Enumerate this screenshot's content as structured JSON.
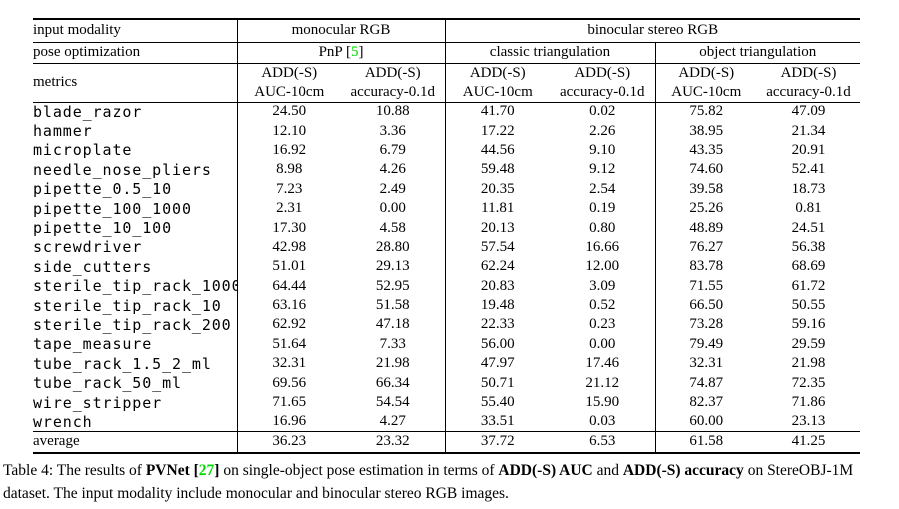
{
  "accent_colors": {
    "citation_green": "#00DD00"
  },
  "table": {
    "header_row1": {
      "label": "input modality",
      "monocular": "monocular RGB",
      "binocular": "binocular stereo RGB"
    },
    "header_row2": {
      "label": "pose optimization",
      "pnp_prefix": "PnP [",
      "pnp_cite": "5",
      "pnp_suffix": "]",
      "classic": "classic triangulation",
      "object": "object triangulation"
    },
    "header_row3": {
      "label": "metrics",
      "metric_top": "ADD(-S)",
      "auc_bottom": "AUC-10cm",
      "acc_bottom": "accuracy-0.1d"
    },
    "rows": [
      {
        "name": "blade_razor",
        "font": "mono",
        "values": [
          "24.50",
          "10.88",
          "41.70",
          "0.02",
          "75.82",
          "47.09"
        ],
        "bold": [
          false,
          false,
          false,
          false,
          true,
          true
        ]
      },
      {
        "name": "hammer",
        "font": "mono",
        "values": [
          "12.10",
          "3.36",
          "17.22",
          "2.26",
          "38.95",
          "21.34"
        ],
        "bold": [
          false,
          false,
          false,
          false,
          true,
          true
        ]
      },
      {
        "name": "microplate",
        "font": "mono",
        "values": [
          "16.92",
          "6.79",
          "44.56",
          "9.10",
          "43.35",
          "20.91"
        ],
        "bold": [
          false,
          false,
          true,
          false,
          false,
          true
        ]
      },
      {
        "name": "needle_nose_pliers",
        "font": "mono",
        "values": [
          "8.98",
          "4.26",
          "59.48",
          "9.12",
          "74.60",
          "52.41"
        ],
        "bold": [
          false,
          false,
          false,
          false,
          true,
          true
        ]
      },
      {
        "name": "pipette_0.5_10",
        "font": "mono",
        "values": [
          "7.23",
          "2.49",
          "20.35",
          "2.54",
          "39.58",
          "18.73"
        ],
        "bold": [
          false,
          false,
          false,
          false,
          true,
          true
        ]
      },
      {
        "name": "pipette_100_1000",
        "font": "mono",
        "values": [
          "2.31",
          "0.00",
          "11.81",
          "0.19",
          "25.26",
          "0.81"
        ],
        "bold": [
          false,
          false,
          false,
          false,
          true,
          true
        ]
      },
      {
        "name": "pipette_10_100",
        "font": "mono",
        "values": [
          "17.30",
          "4.58",
          "20.13",
          "0.80",
          "48.89",
          "24.51"
        ],
        "bold": [
          false,
          false,
          false,
          false,
          true,
          true
        ]
      },
      {
        "name": "screwdriver",
        "font": "mono",
        "values": [
          "42.98",
          "28.80",
          "57.54",
          "16.66",
          "76.27",
          "56.38"
        ],
        "bold": [
          false,
          false,
          false,
          false,
          true,
          true
        ]
      },
      {
        "name": "side_cutters",
        "font": "mono",
        "values": [
          "51.01",
          "29.13",
          "62.24",
          "12.00",
          "83.78",
          "68.69"
        ],
        "bold": [
          false,
          false,
          false,
          false,
          true,
          true
        ]
      },
      {
        "name": "sterile_tip_rack_1000",
        "font": "mono",
        "values": [
          "64.44",
          "52.95",
          "20.83",
          "3.09",
          "71.55",
          "61.72"
        ],
        "bold": [
          false,
          false,
          false,
          false,
          true,
          true
        ]
      },
      {
        "name": "sterile_tip_rack_10",
        "font": "mono",
        "values": [
          "63.16",
          "51.58",
          "19.48",
          "0.52",
          "66.50",
          "50.55"
        ],
        "bold": [
          false,
          true,
          false,
          false,
          true,
          false
        ]
      },
      {
        "name": "sterile_tip_rack_200",
        "font": "mono",
        "values": [
          "62.92",
          "47.18",
          "22.33",
          "0.23",
          "73.28",
          "59.16"
        ],
        "bold": [
          false,
          false,
          false,
          false,
          true,
          true
        ]
      },
      {
        "name": "tape_measure",
        "font": "mono",
        "values": [
          "51.64",
          "7.33",
          "56.00",
          "0.00",
          "79.49",
          "29.59"
        ],
        "bold": [
          false,
          false,
          false,
          false,
          true,
          true
        ]
      },
      {
        "name": "tube_rack_1.5_2_ml",
        "font": "mono",
        "values": [
          "32.31",
          "21.98",
          "47.97",
          "17.46",
          "32.31",
          "21.98"
        ],
        "bold": [
          false,
          true,
          true,
          false,
          false,
          true
        ]
      },
      {
        "name": "tube_rack_50_ml",
        "font": "mono",
        "values": [
          "69.56",
          "66.34",
          "50.71",
          "21.12",
          "74.87",
          "72.35"
        ],
        "bold": [
          false,
          false,
          false,
          false,
          true,
          true
        ]
      },
      {
        "name": "wire_stripper",
        "font": "mono",
        "values": [
          "71.65",
          "54.54",
          "55.40",
          "15.90",
          "82.37",
          "71.86"
        ],
        "bold": [
          false,
          false,
          false,
          false,
          true,
          true
        ]
      },
      {
        "name": "wrench",
        "font": "mono",
        "values": [
          "16.96",
          "4.27",
          "33.51",
          "0.03",
          "60.00",
          "23.13"
        ],
        "bold": [
          false,
          false,
          false,
          false,
          true,
          true
        ]
      },
      {
        "name": "average",
        "font": "serif",
        "values": [
          "36.23",
          "23.32",
          "37.72",
          "6.53",
          "61.58",
          "41.25"
        ],
        "bold": [
          false,
          false,
          false,
          false,
          true,
          true
        ]
      }
    ]
  },
  "caption": {
    "segments": [
      {
        "text": "Table 4: The results of "
      },
      {
        "text": "PVNet",
        "bold": true
      },
      {
        "text": " "
      },
      {
        "text": "[",
        "bold": true
      },
      {
        "text": "27",
        "bold": true,
        "green": true,
        "citation": true
      },
      {
        "text": "]",
        "bold": true
      },
      {
        "text": " on single-object pose estimation in terms of "
      },
      {
        "text": "ADD(-S) AUC",
        "bold": true
      },
      {
        "text": " and "
      },
      {
        "text": "ADD(-S) accuracy",
        "bold": true
      },
      {
        "text": " on StereOBJ-1M dataset. The input modality include monocular and binocular stereo RGB images."
      }
    ]
  }
}
